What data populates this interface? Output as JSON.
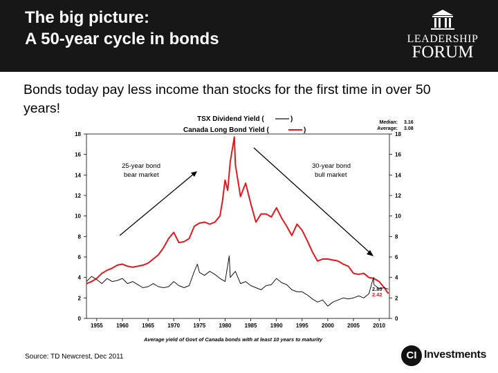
{
  "slide": {
    "title_line1": "The big picture:",
    "title_line2": "A 50-year cycle in bonds",
    "intro": "Bonds today pay less income than stocks for the first time in over 50 years!",
    "source": "Source: TD Newcrest, Dec 2011"
  },
  "logos": {
    "leadership_line1": "LEADERSHIP",
    "leadership_line2": "FORUM",
    "ci_mark": "CI",
    "ci_text": "Investments"
  },
  "colors": {
    "header_bg": "#171717",
    "bond_series": "#e8141b",
    "dividend_series": "#111111"
  },
  "chart_data": {
    "type": "line",
    "title_line1": "TSX Dividend Yield (",
    "title_line1_end": ")",
    "title_line2": "Canada Long Bond Yield (",
    "title_line2_end": ")",
    "stats": {
      "median_label": "Median:",
      "median_value": "3.16",
      "average_label": "Average:",
      "average_value": "3.08"
    },
    "xlabel": "Average yield of Govt of Canada bonds with at least 10 years to maturity",
    "xlim": [
      1953,
      2012
    ],
    "ylim": [
      0,
      18
    ],
    "x_ticks": [
      1955,
      1960,
      1965,
      1970,
      1975,
      1980,
      1985,
      1990,
      1995,
      2000,
      2005,
      2010
    ],
    "y_ticks": [
      0,
      2,
      4,
      6,
      8,
      10,
      12,
      14,
      16,
      18
    ],
    "grid": false,
    "annotations": {
      "left_line1": "25-year bond",
      "left_line2": "bear market",
      "right_line1": "30-year bond",
      "right_line2": "bull market",
      "end_dividend": "2.85",
      "end_bond": "2.42"
    },
    "series": [
      {
        "key": "bond",
        "color": "#e8141b",
        "x": [
          1953,
          1954,
          1955,
          1956,
          1957,
          1958,
          1959,
          1960,
          1961,
          1962,
          1963,
          1964,
          1965,
          1966,
          1967,
          1968,
          1969,
          1970,
          1971,
          1972,
          1973,
          1974,
          1975,
          1976,
          1977,
          1978,
          1979,
          1979.5,
          1980,
          1980.5,
          1981,
          1981.8,
          1982,
          1983,
          1984,
          1985,
          1986,
          1987,
          1988,
          1989,
          1990,
          1991,
          1992,
          1993,
          1994,
          1995,
          1996,
          1997,
          1998,
          1999,
          2000,
          2001,
          2002,
          2003,
          2004,
          2005,
          2006,
          2007,
          2008,
          2009,
          2010,
          2011,
          2011.8
        ],
        "values": [
          3.4,
          3.6,
          3.9,
          4.4,
          4.7,
          4.9,
          5.2,
          5.3,
          5.1,
          5.0,
          5.1,
          5.2,
          5.4,
          5.8,
          6.2,
          6.9,
          7.8,
          8.4,
          7.4,
          7.5,
          7.8,
          9.0,
          9.3,
          9.4,
          9.2,
          9.4,
          10.0,
          11.5,
          13.5,
          12.5,
          15.3,
          17.7,
          15.0,
          11.9,
          13.2,
          11.2,
          9.4,
          10.2,
          10.2,
          9.9,
          10.8,
          9.8,
          9.0,
          8.1,
          9.2,
          8.6,
          7.6,
          6.5,
          5.6,
          5.8,
          5.8,
          5.7,
          5.6,
          5.3,
          5.1,
          4.4,
          4.3,
          4.4,
          4.0,
          3.9,
          3.6,
          3.0,
          2.42
        ]
      },
      {
        "key": "dividend",
        "color": "#111111",
        "x": [
          1953,
          1954,
          1955,
          1956,
          1957,
          1958,
          1959,
          1960,
          1961,
          1962,
          1963,
          1964,
          1965,
          1966,
          1967,
          1968,
          1969,
          1970,
          1971,
          1972,
          1973,
          1974,
          1974.6,
          1975,
          1976,
          1977,
          1978,
          1979,
          1980,
          1980.8,
          1981,
          1982,
          1983,
          1984,
          1985,
          1986,
          1987,
          1988,
          1989,
          1990,
          1991,
          1992,
          1993,
          1994,
          1995,
          1996,
          1997,
          1998,
          1999,
          2000,
          2001,
          2002,
          2003,
          2004,
          2005,
          2006,
          2007,
          2008,
          2008.9,
          2009,
          2010,
          2011,
          2011.8
        ],
        "values": [
          3.6,
          4.1,
          3.8,
          3.4,
          3.9,
          3.6,
          3.7,
          3.9,
          3.4,
          3.6,
          3.3,
          3.0,
          3.1,
          3.4,
          3.1,
          3.0,
          3.1,
          3.6,
          3.2,
          3.0,
          3.2,
          4.6,
          5.3,
          4.5,
          4.2,
          4.6,
          4.3,
          3.9,
          3.6,
          6.1,
          4.0,
          4.6,
          3.4,
          3.6,
          3.2,
          3.0,
          2.8,
          3.2,
          3.3,
          3.9,
          3.5,
          3.3,
          2.8,
          2.6,
          2.6,
          2.3,
          1.9,
          1.6,
          1.8,
          1.2,
          1.6,
          1.8,
          2.0,
          1.9,
          2.0,
          2.2,
          2.0,
          2.4,
          4.0,
          3.3,
          2.9,
          3.0,
          2.85
        ]
      }
    ]
  }
}
